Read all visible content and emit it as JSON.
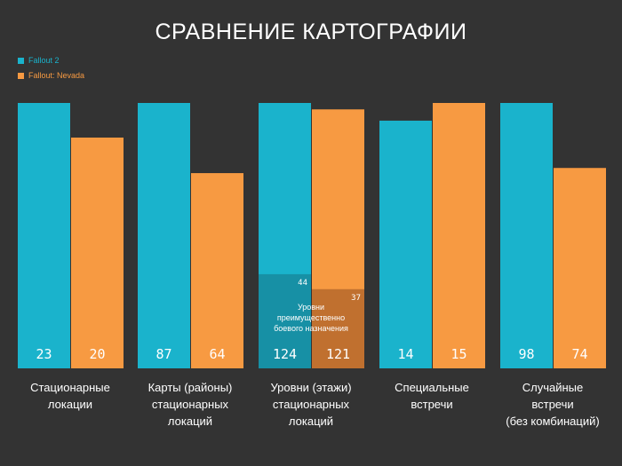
{
  "chart_data": {
    "type": "bar",
    "title": "СРАВНЕНИЕ КАРТОГРАФИИ",
    "normalization": "per-category (tallest bar in each group fills the height)",
    "legend": "top-left",
    "categories": [
      [
        "Стационарные",
        "локации"
      ],
      [
        "Карты (районы)",
        "стационарных",
        "локаций"
      ],
      [
        "Уровни (этажи)",
        "стационарных",
        "локаций"
      ],
      [
        "Специальные",
        "встречи"
      ],
      [
        "Случайные",
        "встречи",
        "(без комбинаций)"
      ]
    ],
    "series": [
      {
        "name": "Fallout 2",
        "color": "#1ab3cc",
        "values": [
          23,
          87,
          124,
          14,
          98
        ]
      },
      {
        "name": "Fallout: Nevada",
        "color": "#f79a42",
        "values": [
          20,
          64,
          121,
          15,
          74
        ]
      }
    ],
    "subset": {
      "category_index": 2,
      "label": "Уровни преимущественно боевого назначения",
      "values": [
        44,
        37
      ],
      "colors": [
        "#1790a5",
        "#c0702f"
      ]
    }
  }
}
